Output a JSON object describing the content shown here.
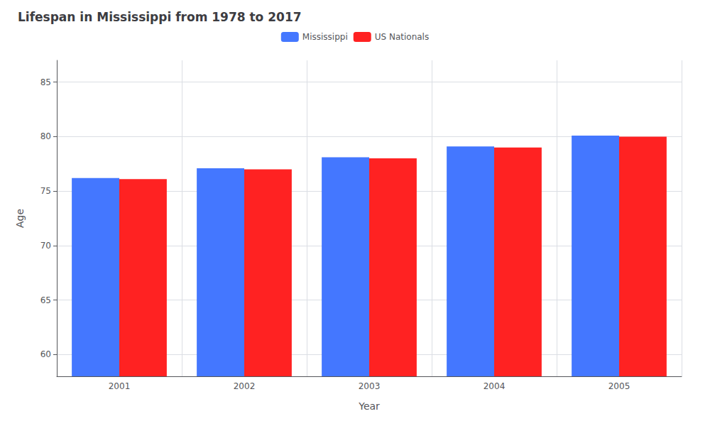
{
  "chart_data": {
    "type": "bar",
    "title": "Lifespan in Mississippi from 1978 to 2017",
    "x_label": "Year",
    "y_label": "Age",
    "categories": [
      "2001",
      "2002",
      "2003",
      "2004",
      "2005"
    ],
    "series": [
      {
        "name": "Mississippi",
        "color": "#4477ff",
        "values": [
          76.2,
          77.1,
          78.1,
          79.1,
          80.1
        ]
      },
      {
        "name": "US Nationals",
        "color": "#ff2222",
        "values": [
          76.1,
          77.0,
          78.0,
          79.0,
          80.0
        ]
      }
    ],
    "ylim": [
      58,
      87
    ],
    "yticks": [
      60,
      65,
      70,
      75,
      80,
      85
    ],
    "grid": true,
    "legend": "top"
  }
}
